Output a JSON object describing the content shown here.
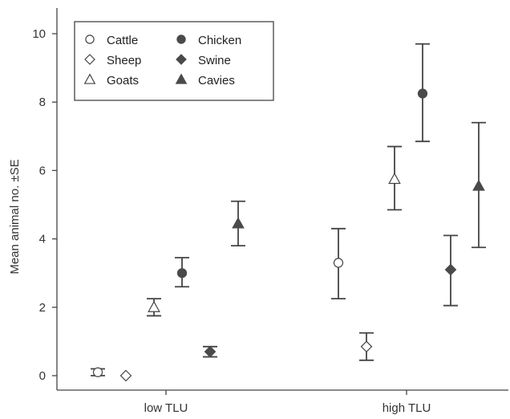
{
  "chart_data": {
    "type": "scatter",
    "ylabel": "Mean animal no. ±SE",
    "xlabel": "",
    "categories": [
      "low TLU",
      "high TLU"
    ],
    "y_ticks": [
      0,
      2,
      4,
      6,
      8,
      10
    ],
    "ylim": [
      -0.4,
      10.7
    ],
    "legend_position": "top-left",
    "grid": false,
    "series": [
      {
        "name": "Cattle",
        "marker": "circle",
        "filled": false,
        "color": "#333333",
        "mean": [
          0.1,
          3.3
        ],
        "lower": [
          0.0,
          2.25
        ],
        "upper": [
          0.2,
          4.3
        ]
      },
      {
        "name": "Sheep",
        "marker": "diamond",
        "filled": false,
        "color": "#333333",
        "mean": [
          0.0,
          0.85
        ],
        "lower": [
          0.0,
          0.45
        ],
        "upper": [
          0.0,
          1.25
        ]
      },
      {
        "name": "Goats",
        "marker": "triangle",
        "filled": false,
        "color": "#333333",
        "mean": [
          2.0,
          5.75
        ],
        "lower": [
          1.75,
          4.85
        ],
        "upper": [
          2.25,
          6.7
        ]
      },
      {
        "name": "Chicken",
        "marker": "circle",
        "filled": true,
        "color": "#4a4a4a",
        "mean": [
          3.0,
          8.25
        ],
        "lower": [
          2.6,
          6.85
        ],
        "upper": [
          3.45,
          9.7
        ]
      },
      {
        "name": "Swine",
        "marker": "diamond",
        "filled": true,
        "color": "#4a4a4a",
        "mean": [
          0.7,
          3.1
        ],
        "lower": [
          0.55,
          2.05
        ],
        "upper": [
          0.85,
          4.1
        ]
      },
      {
        "name": "Cavies",
        "marker": "triangle",
        "filled": true,
        "color": "#4a4a4a",
        "mean": [
          4.45,
          5.55
        ],
        "lower": [
          3.8,
          3.75
        ],
        "upper": [
          5.1,
          7.4
        ]
      }
    ]
  }
}
